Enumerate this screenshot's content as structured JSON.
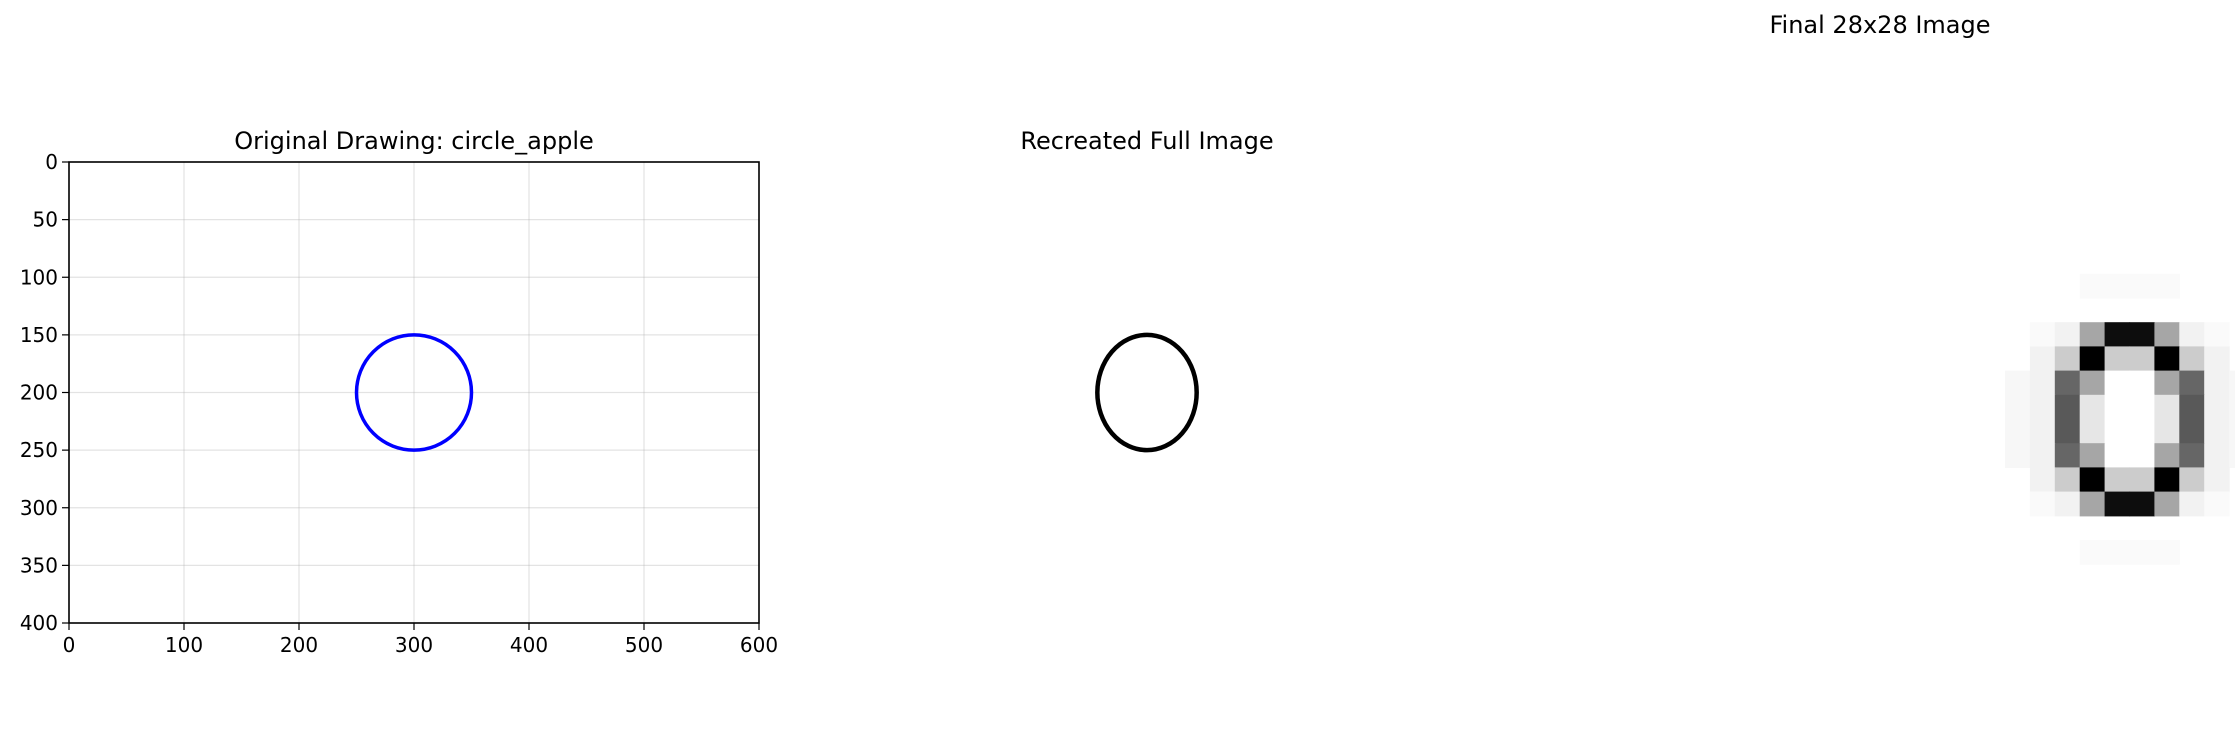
{
  "chart_data": [
    {
      "type": "line",
      "title": "Original Drawing: circle_apple",
      "xlabel": "",
      "ylabel": "",
      "xlim": [
        0,
        600
      ],
      "ylim": [
        400,
        0
      ],
      "y_axis_inverted": true,
      "grid": true,
      "xticks": [
        "0",
        "100",
        "200",
        "300",
        "400",
        "500",
        "600"
      ],
      "yticks": [
        "0",
        "50",
        "100",
        "150",
        "200",
        "250",
        "300",
        "350",
        "400"
      ],
      "series": [
        {
          "name": "circle_apple",
          "shape": "circle",
          "color": "#0000ff",
          "center": [
            300,
            200
          ],
          "radius": 50
        }
      ]
    },
    {
      "type": "line",
      "title": "Recreated Full Image",
      "axis": "off",
      "xlim": [
        0,
        600
      ],
      "ylim": [
        400,
        0
      ],
      "series": [
        {
          "name": "recreated",
          "shape": "circle",
          "color": "#000000",
          "center": [
            300,
            200
          ],
          "radius": 50
        }
      ]
    },
    {
      "type": "heatmap",
      "title": "Final 28x28 Image",
      "axis": "off",
      "colormap": "gray_r",
      "rows": 28,
      "cols": 28,
      "nonzero_rows": [
        {
          "row": 9,
          "start": 13,
          "values": [
            0.02,
            0.02,
            0.02,
            0.02
          ]
        },
        {
          "row": 11,
          "start": 11,
          "values": [
            0.02,
            0.05,
            0.35,
            0.95,
            0.95,
            0.35,
            0.05,
            0.02
          ]
        },
        {
          "row": 12,
          "start": 11,
          "values": [
            0.05,
            0.2,
            1.0,
            0.2,
            0.2,
            1.0,
            0.2,
            0.05
          ]
        },
        {
          "row": 13,
          "start": 10,
          "values": [
            0.03,
            0.05,
            0.6,
            0.35,
            0.0,
            0.0,
            0.35,
            0.6,
            0.05,
            0.03
          ]
        },
        {
          "row": 14,
          "start": 10,
          "values": [
            0.03,
            0.05,
            0.65,
            0.1,
            0.0,
            0.0,
            0.1,
            0.65,
            0.05,
            0.03
          ]
        },
        {
          "row": 15,
          "start": 10,
          "values": [
            0.03,
            0.05,
            0.65,
            0.1,
            0.0,
            0.0,
            0.1,
            0.65,
            0.05,
            0.03
          ]
        },
        {
          "row": 16,
          "start": 10,
          "values": [
            0.03,
            0.05,
            0.6,
            0.35,
            0.0,
            0.0,
            0.35,
            0.6,
            0.05,
            0.03
          ]
        },
        {
          "row": 17,
          "start": 11,
          "values": [
            0.05,
            0.2,
            1.0,
            0.2,
            0.2,
            1.0,
            0.2,
            0.05
          ]
        },
        {
          "row": 18,
          "start": 11,
          "values": [
            0.02,
            0.05,
            0.35,
            0.95,
            0.95,
            0.35,
            0.05,
            0.02
          ]
        },
        {
          "row": 20,
          "start": 13,
          "values": [
            0.02,
            0.02,
            0.02,
            0.02
          ]
        }
      ]
    }
  ]
}
